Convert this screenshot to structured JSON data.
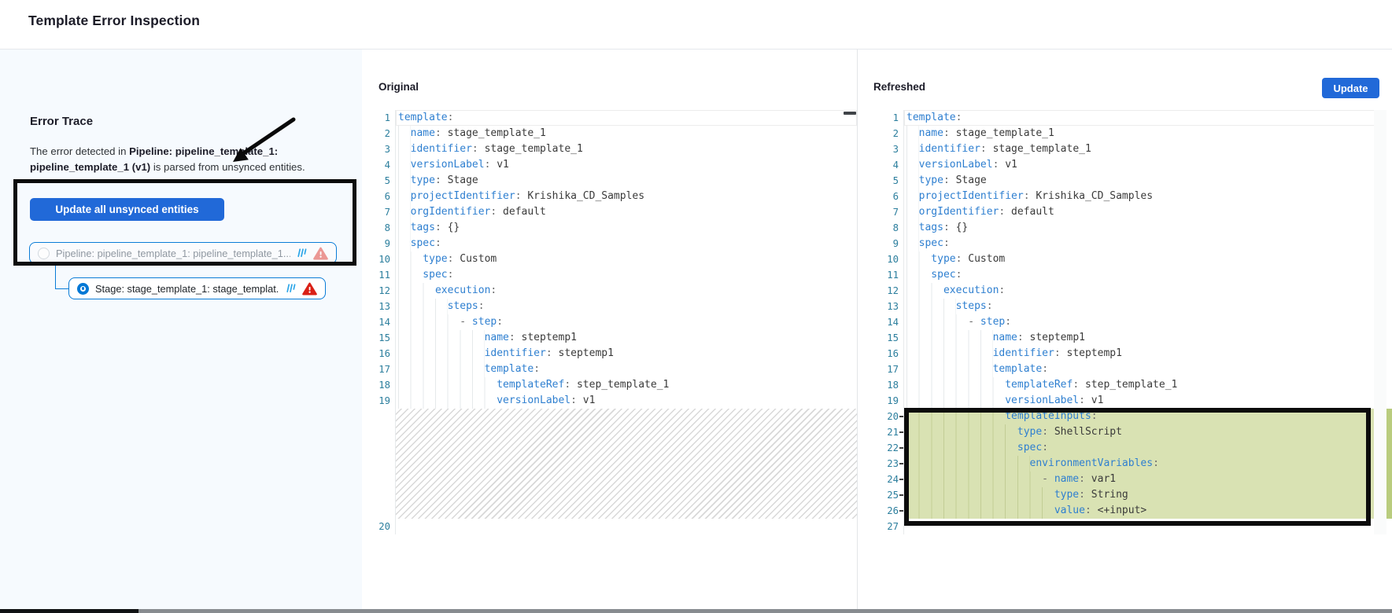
{
  "header": {
    "title": "Template Error Inspection"
  },
  "sidebar": {
    "heading": "Error Trace",
    "description": {
      "prefix": "The error detected in ",
      "entity": "Pipeline: pipeline_template_1: pipeline_template_1 (v1)",
      "suffix": " is parsed from unsynced entities."
    },
    "update_all_button": "Update all unsynced entities",
    "tree": {
      "pipeline_item": {
        "label": "Pipeline: pipeline_template_1: pipeline_template_1...",
        "selected": false,
        "icons": [
          "radio-unselected-icon",
          "template-library-icon",
          "warning-triangle-icon-faded"
        ]
      },
      "stage_item": {
        "label": "Stage: stage_template_1: stage_templat...",
        "selected": true,
        "icons": [
          "radio-selected-icon",
          "template-library-icon",
          "warning-triangle-icon"
        ]
      }
    }
  },
  "original_panel": {
    "title": "Original",
    "code": {
      "placeholder_after_line": 19,
      "placeholder_rows": 7,
      "lines": [
        "template:",
        "  name: stage_template_1",
        "  identifier: stage_template_1",
        "  versionLabel: v1",
        "  type: Stage",
        "  projectIdentifier: Krishika_CD_Samples",
        "  orgIdentifier: default",
        "  tags: {}",
        "  spec:",
        "    type: Custom",
        "    spec:",
        "      execution:",
        "        steps:",
        "          - step:",
        "              name: steptemp1",
        "              identifier: steptemp1",
        "              template:",
        "                templateRef: step_template_1",
        "                versionLabel: v1",
        ""
      ]
    }
  },
  "refreshed_panel": {
    "title": "Refreshed",
    "update_button": "Update",
    "code": {
      "added_from": 20,
      "added_to": 26,
      "lines": [
        "template:",
        "  name: stage_template_1",
        "  identifier: stage_template_1",
        "  versionLabel: v1",
        "  type: Stage",
        "  projectIdentifier: Krishika_CD_Samples",
        "  orgIdentifier: default",
        "  tags: {}",
        "  spec:",
        "    type: Custom",
        "    spec:",
        "      execution:",
        "        steps:",
        "          - step:",
        "              name: steptemp1",
        "              identifier: steptemp1",
        "              template:",
        "                templateRef: step_template_1",
        "                versionLabel: v1",
        "                templateInputs:",
        "                  type: ShellScript",
        "                  spec:",
        "                    environmentVariables:",
        "                      - name: var1",
        "                        type: String",
        "                        value: <+input>",
        ""
      ]
    }
  },
  "colors": {
    "accent_blue": "#2169d8",
    "harness_blue": "#0278d5",
    "tree_border_blue": "#0a7cd7",
    "template_icon_blue": "#2da6e8",
    "warning_red": "#da2016",
    "added_line_green": "#d9e2b3",
    "annotation_black": "#0c0c0c",
    "sidebar_background": "#f6fafe",
    "yaml_key_blue": "#2e7fd0",
    "line_number_teal": "#2d7f9e"
  }
}
